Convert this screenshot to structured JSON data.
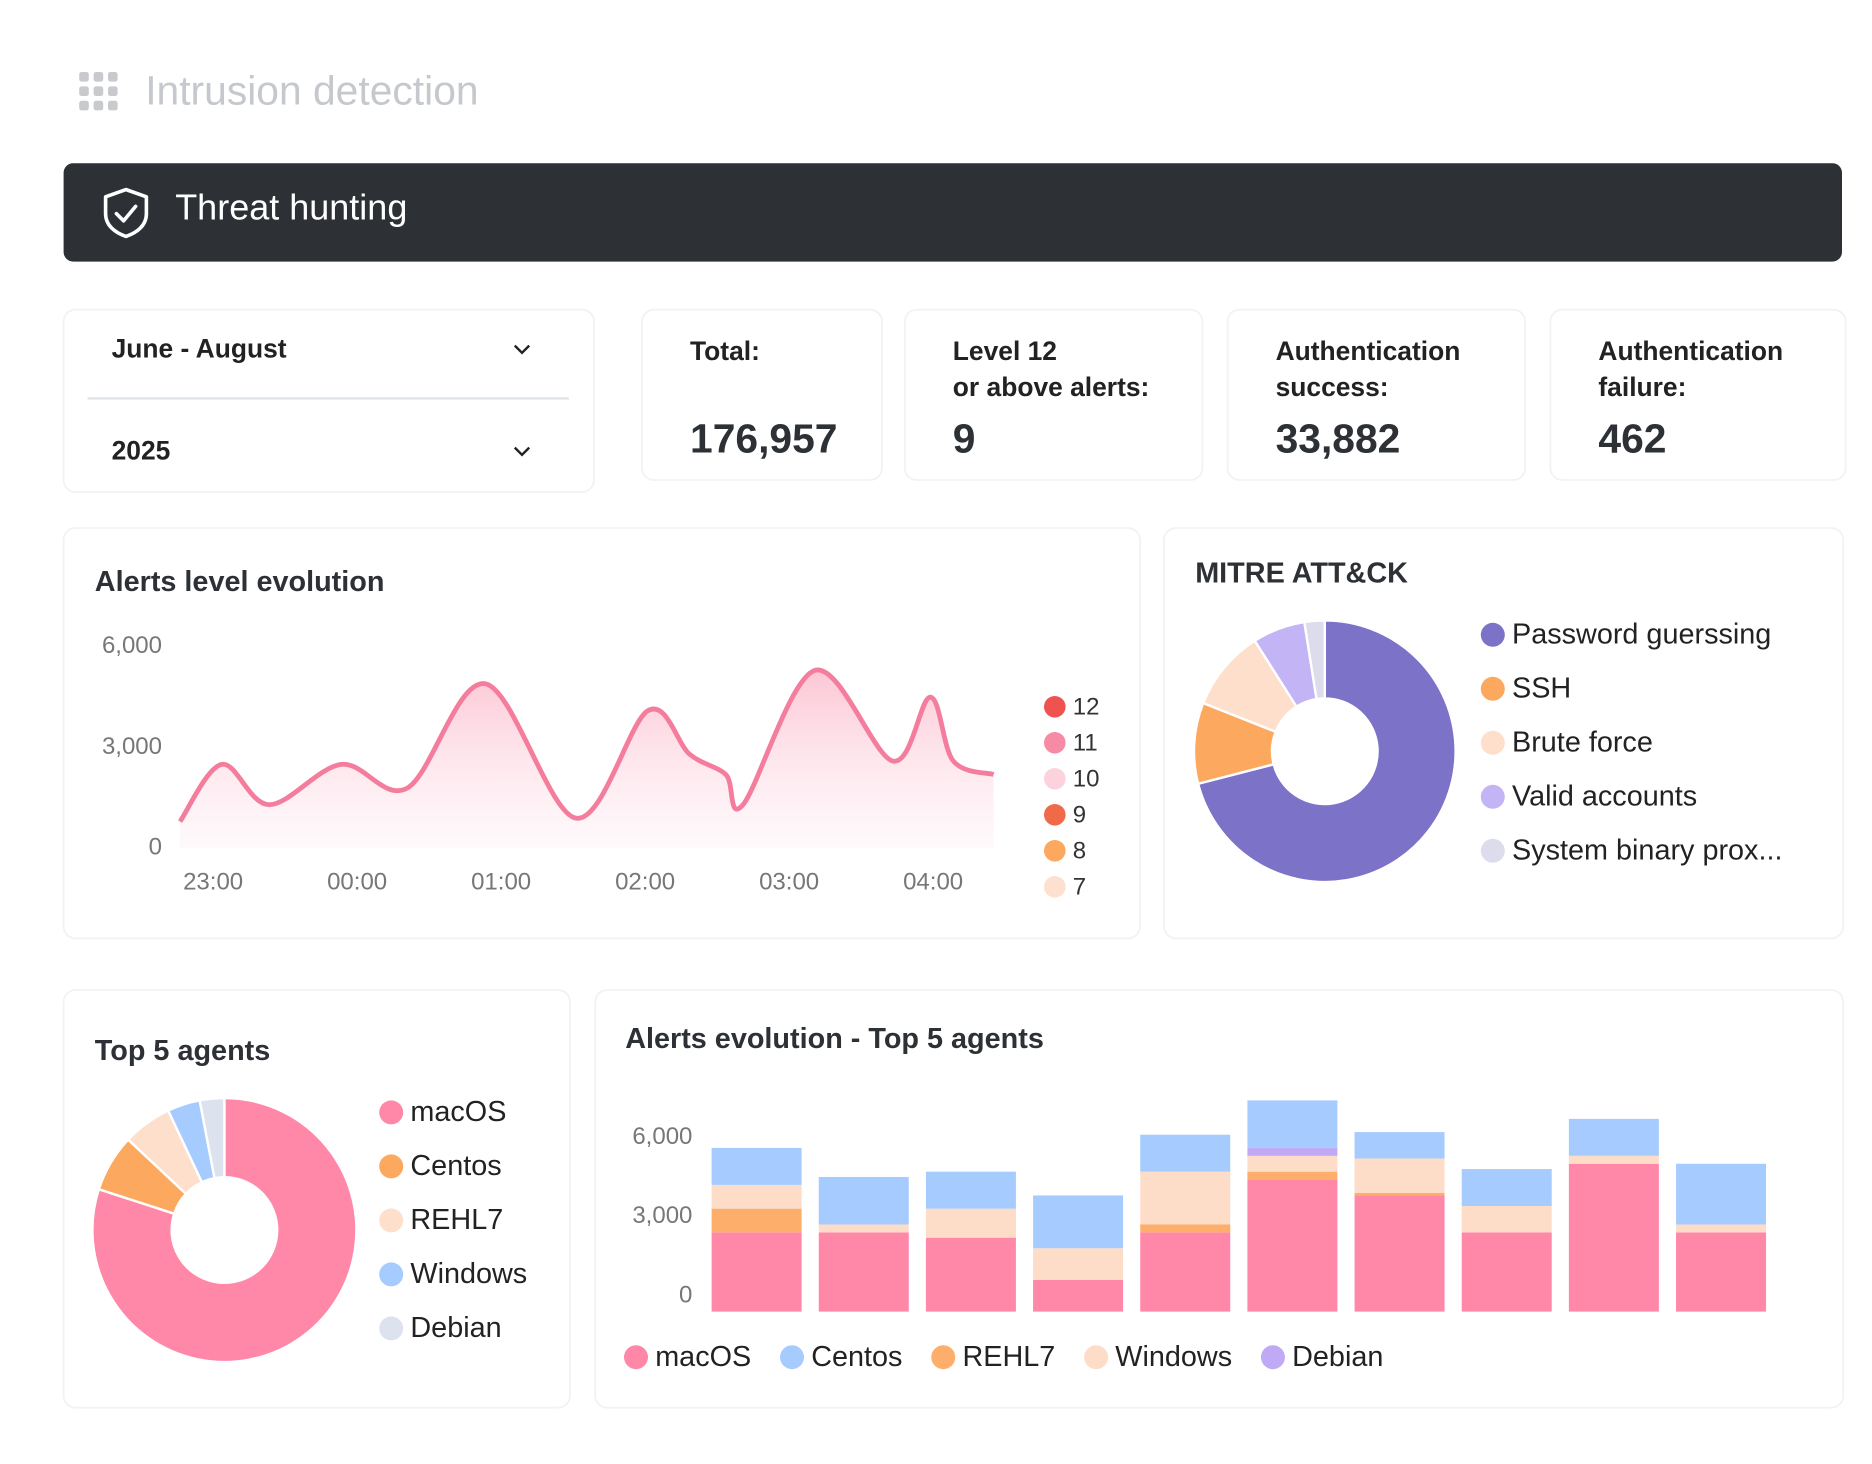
{
  "header": {
    "title": "Intrusion detection"
  },
  "banner": {
    "title": "Threat hunting"
  },
  "filters": [
    "June - August",
    "2025"
  ],
  "stats": [
    {
      "label": [
        "Total:"
      ],
      "value": "176,957"
    },
    {
      "label": [
        "Level 12",
        "or above alerts:"
      ],
      "value": "9"
    },
    {
      "label": [
        "Authentication",
        "success:"
      ],
      "value": "33,882"
    },
    {
      "label": [
        "Authentication",
        "failure:"
      ],
      "value": "462"
    }
  ],
  "chart_data": [
    {
      "type": "line",
      "title": "Alerts level evolution",
      "x": [
        22.77,
        23.06,
        23.39,
        23.89,
        24.35,
        24.89,
        25.52,
        26.02,
        26.31,
        26.56,
        26.68,
        27.18,
        27.72,
        27.98,
        28.14,
        28.42
      ],
      "series": [
        {
          "color": "#f47c9c",
          "values": [
            800,
            2500,
            1300,
            2500,
            1800,
            4900,
            900,
            4100,
            2800,
            2200,
            1300,
            5300,
            2600,
            4500,
            2600,
            2200
          ]
        }
      ],
      "xlim": [
        22.77,
        28.42
      ],
      "xticks": [
        {
          "value": 23,
          "label": "23:00"
        },
        {
          "value": 24,
          "label": "00:00"
        },
        {
          "value": 25,
          "label": "01:00"
        },
        {
          "value": 26,
          "label": "02:00"
        },
        {
          "value": 27,
          "label": "03:00"
        },
        {
          "value": 28,
          "label": "04:00"
        }
      ],
      "ylim": [
        0,
        6000
      ],
      "yticks": [
        {
          "value": 6000,
          "label": "6,000"
        },
        {
          "value": 3000,
          "label": "3,000"
        },
        0
      ],
      "legend": [
        {
          "name": "12",
          "color": "#ef5350"
        },
        {
          "name": "11",
          "color": "#f78ba5"
        },
        {
          "name": "10",
          "color": "#fcd2dc"
        },
        {
          "name": "9",
          "color": "#f06a4a"
        },
        {
          "name": "8",
          "color": "#fca85f"
        },
        {
          "name": "7",
          "color": "#fde0cf"
        }
      ]
    },
    {
      "type": "pie",
      "title": "MITRE ATT&CK",
      "categories": [
        "Password guerssing",
        "SSH",
        "Brute force",
        "Valid accounts",
        "System binary prox..."
      ],
      "values": [
        71,
        10,
        10,
        6.5,
        2.5
      ],
      "colors": [
        "#7c72c8",
        "#fca85f",
        "#fddfcc",
        "#c3b5f5",
        "#dcdcec"
      ]
    },
    {
      "type": "pie",
      "title": "Top 5 agents",
      "categories": [
        "macOS",
        "Centos",
        "REHL7",
        "Windows",
        "Debian"
      ],
      "values": [
        80,
        7,
        6,
        4,
        3
      ],
      "colors": [
        "#ff88a8",
        "#fca85f",
        "#fddfcc",
        "#a6ccff",
        "#dde3ee"
      ]
    },
    {
      "type": "bar",
      "stacked": true,
      "title": "Alerts evolution - Top 5 agents",
      "categories": [
        null,
        null,
        null,
        null,
        null,
        null,
        null,
        null,
        null,
        null
      ],
      "series": [
        {
          "name": "macOS",
          "color": "#ff88a8",
          "values": [
            3000,
            3000,
            2800,
            1200,
            3000,
            5000,
            4400,
            3000,
            5600,
            3000
          ]
        },
        {
          "name": "Centos",
          "color": "#a6ccff",
          "values": [
            1400,
            1800,
            1400,
            2000,
            1400,
            1800,
            1000,
            1400,
            1400,
            2300
          ]
        },
        {
          "name": "REHL7",
          "color": "#fdae6b",
          "values": [
            900,
            0,
            0,
            0,
            300,
            300,
            100,
            0,
            0,
            0
          ]
        },
        {
          "name": "Windows",
          "color": "#fddcc8",
          "values": [
            900,
            300,
            1100,
            1200,
            2000,
            600,
            1300,
            1000,
            300,
            300
          ]
        },
        {
          "name": "Debian",
          "color": "#c0aaf5",
          "values": [
            0,
            0,
            0,
            0,
            0,
            300,
            0,
            0,
            0,
            0
          ]
        }
      ],
      "ylim": [
        0,
        9000
      ],
      "yticks": [
        {
          "value": 6000,
          "label": "6,000"
        },
        {
          "value": 3000,
          "label": "3,000"
        },
        0
      ]
    }
  ]
}
